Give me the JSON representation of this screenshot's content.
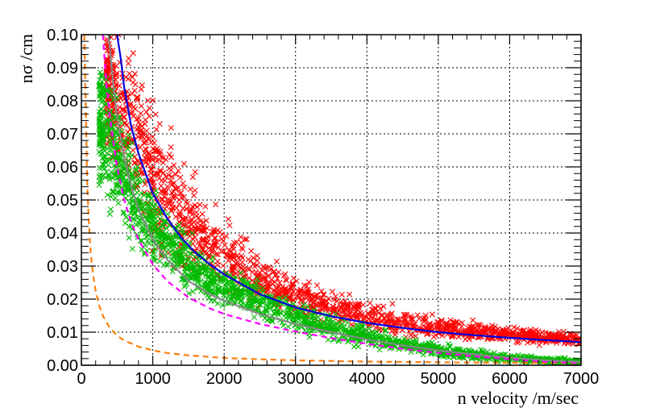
{
  "chart_data": {
    "type": "scatter",
    "title": "",
    "xlabel": "n velocity /m/sec",
    "ylabel": "nσ /cm",
    "xlim": [
      0,
      7000
    ],
    "ylim": [
      0.0,
      0.1
    ],
    "grid": true,
    "x_ticks": [
      0,
      1000,
      2000,
      3000,
      4000,
      5000,
      6000,
      7000
    ],
    "x_tick_labels": [
      "0",
      "1000",
      "2000",
      "3000",
      "4000",
      "5000",
      "6000",
      "7000"
    ],
    "y_ticks": [
      0.0,
      0.01,
      0.02,
      0.03,
      0.04,
      0.05,
      0.06,
      0.07,
      0.08,
      0.09,
      0.1
    ],
    "y_tick_labels": [
      "0.00",
      "0.01",
      "0.02",
      "0.03",
      "0.04",
      "0.05",
      "0.06",
      "0.07",
      "0.08",
      "0.09",
      "0.10"
    ],
    "series": [
      {
        "kind": "scatter",
        "marker": "x",
        "color": "#ff0000",
        "x": [
          350,
          500,
          600,
          700,
          800,
          900,
          1000,
          1100,
          1200,
          1300,
          1400,
          1500,
          1600,
          1700,
          1800,
          2000,
          2200,
          2400,
          2600,
          2800,
          3000,
          3300,
          3600,
          4000,
          4500,
          5000,
          5500,
          6000,
          6500,
          7000
        ],
        "center": [
          0.085,
          0.08,
          0.075,
          0.07,
          0.066,
          0.062,
          0.058,
          0.054,
          0.051,
          0.048,
          0.045,
          0.043,
          0.041,
          0.039,
          0.037,
          0.033,
          0.03,
          0.027,
          0.025,
          0.023,
          0.021,
          0.019,
          0.017,
          0.015,
          0.013,
          0.0115,
          0.0105,
          0.0095,
          0.0085,
          0.0075
        ],
        "spread": [
          0.015,
          0.02,
          0.02,
          0.02,
          0.02,
          0.019,
          0.018,
          0.017,
          0.016,
          0.015,
          0.015,
          0.014,
          0.013,
          0.012,
          0.011,
          0.01,
          0.009,
          0.008,
          0.007,
          0.006,
          0.0055,
          0.005,
          0.0045,
          0.004,
          0.0035,
          0.003,
          0.0025,
          0.0022,
          0.002,
          0.0018
        ]
      },
      {
        "kind": "scatter",
        "marker": "x",
        "color": "#00bb00",
        "x": [
          250,
          350,
          450,
          550,
          650,
          750,
          850,
          1000,
          1200,
          1400,
          1600,
          1800,
          2000,
          2300,
          2600,
          3000,
          3400,
          3800,
          4200,
          4600,
          5000,
          5500,
          6000,
          6500,
          7000
        ],
        "center": [
          0.075,
          0.07,
          0.065,
          0.06,
          0.055,
          0.05,
          0.046,
          0.042,
          0.037,
          0.033,
          0.029,
          0.026,
          0.024,
          0.021,
          0.018,
          0.015,
          0.012,
          0.0095,
          0.0075,
          0.006,
          0.0045,
          0.0032,
          0.0022,
          0.0015,
          0.001
        ],
        "spread": [
          0.02,
          0.02,
          0.018,
          0.016,
          0.014,
          0.012,
          0.011,
          0.01,
          0.0085,
          0.0075,
          0.0065,
          0.006,
          0.0055,
          0.005,
          0.0045,
          0.004,
          0.0035,
          0.003,
          0.0025,
          0.002,
          0.0018,
          0.0015,
          0.0012,
          0.001,
          0.0008
        ]
      },
      {
        "kind": "line",
        "color": "#ff7f0e",
        "dash": "dashed",
        "x": [
          40,
          60,
          80,
          100,
          130,
          160,
          200,
          250,
          300,
          400,
          500,
          600,
          800,
          1000,
          1200,
          1500,
          2000,
          2500,
          3000,
          3500,
          4000,
          4500,
          5000,
          5500,
          6000,
          6500,
          7000
        ],
        "y": [
          0.1,
          0.08,
          0.056,
          0.045,
          0.034,
          0.028,
          0.0225,
          0.018,
          0.015,
          0.0112,
          0.009,
          0.0075,
          0.0056,
          0.0045,
          0.0037,
          0.003,
          0.0022,
          0.0018,
          0.0015,
          0.0013,
          0.0011,
          0.001,
          0.0009,
          0.0008,
          0.00075,
          0.0007,
          0.00065
        ]
      },
      {
        "kind": "line",
        "color": "#ff00ff",
        "dash": "dashed",
        "x": [
          300,
          350,
          400,
          450,
          500,
          600,
          700,
          800,
          1000,
          1200,
          1500,
          1800,
          2000,
          2500,
          3000,
          3500,
          4000,
          4500,
          5000,
          5500,
          6000,
          6500,
          7000
        ],
        "y": [
          0.1,
          0.085,
          0.075,
          0.067,
          0.06,
          0.05,
          0.043,
          0.038,
          0.0305,
          0.0255,
          0.0205,
          0.0172,
          0.0155,
          0.0125,
          0.0102,
          0.0082,
          0.0065,
          0.005,
          0.0037,
          0.0027,
          0.0018,
          0.0011,
          0.0006
        ]
      },
      {
        "kind": "line",
        "color": "#888888",
        "dash": "solid",
        "x": [
          380,
          450,
          500,
          600,
          700,
          800,
          1000,
          1200,
          1500,
          1800,
          2000,
          2500,
          3000,
          3500,
          4000,
          4500,
          5000,
          5500,
          6000,
          6500,
          7000
        ],
        "y": [
          0.1,
          0.084,
          0.075,
          0.063,
          0.054,
          0.047,
          0.038,
          0.032,
          0.0255,
          0.0215,
          0.0195,
          0.0155,
          0.0125,
          0.01,
          0.0078,
          0.006,
          0.0045,
          0.0033,
          0.0023,
          0.0015,
          0.001
        ]
      },
      {
        "kind": "line",
        "color": "#0000dd",
        "dash": "solid",
        "x": [
          500,
          550,
          600,
          700,
          800,
          900,
          1000,
          1200,
          1400,
          1600,
          1800,
          2000,
          2500,
          3000,
          3500,
          4000,
          4500,
          5000,
          5500,
          6000,
          6500,
          7000
        ],
        "y": [
          0.1,
          0.093,
          0.084,
          0.072,
          0.064,
          0.058,
          0.052,
          0.0445,
          0.0385,
          0.034,
          0.0305,
          0.0275,
          0.0215,
          0.0175,
          0.0148,
          0.0128,
          0.0113,
          0.01,
          0.0091,
          0.0083,
          0.0076,
          0.007
        ]
      }
    ]
  }
}
